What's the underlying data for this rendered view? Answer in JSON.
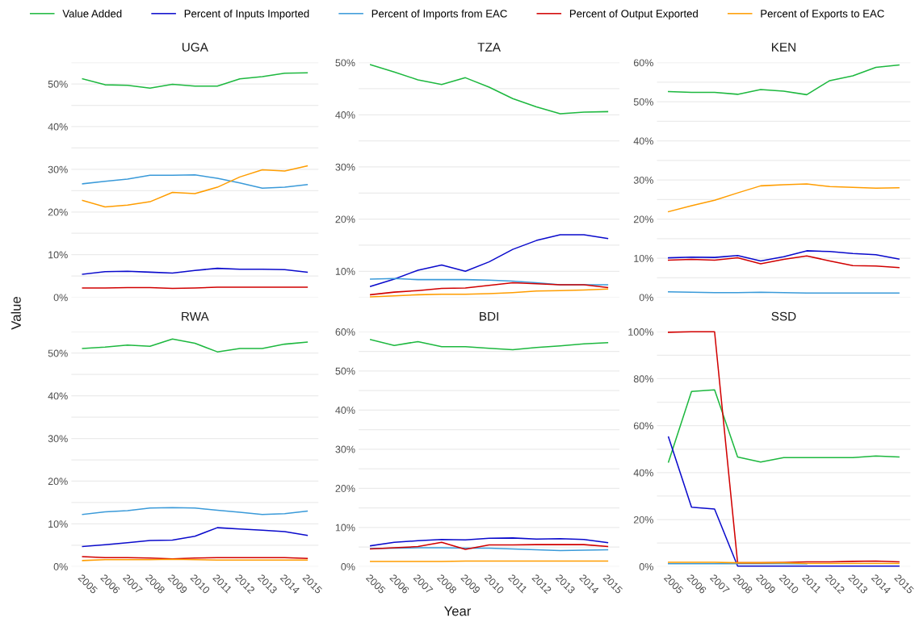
{
  "chart_data": [
    {
      "type": "line",
      "title": "UGA",
      "ylabel": "Value",
      "legend": "top",
      "grid": "y",
      "tick_labels": "y",
      "x": [
        2005,
        2006,
        2007,
        2008,
        2009,
        2010,
        2011,
        2012,
        2013,
        2014,
        2015
      ],
      "xlim": [
        2004.5,
        2015.5
      ],
      "ylim": [
        0,
        55
      ],
      "yticks": [
        {
          "value": 0,
          "label": "0%"
        },
        {
          "value": 5,
          "label": null
        },
        {
          "value": 10,
          "label": "10%"
        },
        {
          "value": 15,
          "label": null
        },
        {
          "value": 20,
          "label": "20%"
        },
        {
          "value": 25,
          "label": null
        },
        {
          "value": 30,
          "label": "30%"
        },
        {
          "value": 35,
          "label": null
        },
        {
          "value": 40,
          "label": "40%"
        },
        {
          "value": 45,
          "label": null
        },
        {
          "value": 50,
          "label": "50%"
        },
        {
          "value": 55,
          "label": null
        }
      ],
      "series": [
        {
          "name": "Value Added",
          "color": "#1db83f",
          "values": [
            51.2,
            49.8,
            49.7,
            49.0,
            49.9,
            49.5,
            49.5,
            51.2,
            51.7,
            52.5,
            52.6
          ]
        },
        {
          "name": "Percent of Inputs Imported",
          "color": "#0a0acc",
          "values": [
            5.4,
            6.0,
            6.1,
            5.9,
            5.7,
            6.3,
            6.8,
            6.6,
            6.6,
            6.5,
            5.9
          ]
        },
        {
          "name": "Percent of Imports from EAC",
          "color": "#3a9ad9",
          "values": [
            26.6,
            27.2,
            27.7,
            28.6,
            28.6,
            28.7,
            27.9,
            26.8,
            25.6,
            25.8,
            26.4
          ]
        },
        {
          "name": "Percent of Output Exported",
          "color": "#d10000",
          "values": [
            2.2,
            2.2,
            2.3,
            2.3,
            2.1,
            2.2,
            2.4,
            2.4,
            2.4,
            2.4,
            2.4
          ]
        },
        {
          "name": "Percent of Exports to EAC",
          "color": "#ff9d00",
          "values": [
            22.7,
            21.2,
            21.6,
            22.4,
            24.6,
            24.3,
            25.8,
            28.2,
            29.9,
            29.6,
            30.8
          ]
        }
      ]
    },
    {
      "type": "line",
      "title": "TZA",
      "grid": "y",
      "tick_labels": "y",
      "x": [
        2005,
        2006,
        2007,
        2008,
        2009,
        2010,
        2011,
        2012,
        2013,
        2014,
        2015
      ],
      "xlim": [
        2004.5,
        2015.5
      ],
      "ylim": [
        5,
        50
      ],
      "yticks": [
        {
          "value": 5,
          "label": null
        },
        {
          "value": 10,
          "label": "10%"
        },
        {
          "value": 15,
          "label": null
        },
        {
          "value": 20,
          "label": "20%"
        },
        {
          "value": 25,
          "label": null
        },
        {
          "value": 30,
          "label": "30%"
        },
        {
          "value": 35,
          "label": null
        },
        {
          "value": 40,
          "label": "40%"
        },
        {
          "value": 45,
          "label": null
        },
        {
          "value": 50,
          "label": "50%"
        }
      ],
      "series": [
        {
          "color": "#1db83f",
          "values": [
            49.6,
            48.2,
            46.7,
            45.8,
            47.1,
            45.3,
            43.1,
            41.5,
            40.2,
            40.5,
            40.6
          ]
        },
        {
          "color": "#0a0acc",
          "values": [
            7.1,
            8.5,
            10.2,
            11.2,
            10.0,
            11.8,
            14.2,
            15.9,
            17.0,
            17.0,
            16.3
          ]
        },
        {
          "color": "#3a9ad9",
          "values": [
            8.5,
            8.6,
            8.4,
            8.4,
            8.4,
            8.3,
            8.1,
            7.8,
            7.4,
            7.4,
            7.4
          ]
        },
        {
          "color": "#d10000",
          "values": [
            5.5,
            6.0,
            6.3,
            6.7,
            6.8,
            7.3,
            7.8,
            7.6,
            7.4,
            7.4,
            6.9
          ]
        },
        {
          "color": "#ff9d00",
          "values": [
            5.1,
            5.3,
            5.5,
            5.6,
            5.6,
            5.7,
            5.9,
            6.2,
            6.3,
            6.4,
            6.6
          ]
        }
      ]
    },
    {
      "type": "line",
      "title": "KEN",
      "grid": "y",
      "tick_labels": "y",
      "x": [
        2005,
        2006,
        2007,
        2008,
        2009,
        2010,
        2011,
        2012,
        2013,
        2014,
        2015
      ],
      "xlim": [
        2004.5,
        2015.5
      ],
      "ylim": [
        0,
        60
      ],
      "yticks": [
        {
          "value": 0,
          "label": "0%"
        },
        {
          "value": 5,
          "label": null
        },
        {
          "value": 10,
          "label": "10%"
        },
        {
          "value": 15,
          "label": null
        },
        {
          "value": 20,
          "label": "20%"
        },
        {
          "value": 25,
          "label": null
        },
        {
          "value": 30,
          "label": "30%"
        },
        {
          "value": 35,
          "label": null
        },
        {
          "value": 40,
          "label": "40%"
        },
        {
          "value": 45,
          "label": null
        },
        {
          "value": 50,
          "label": "50%"
        },
        {
          "value": 55,
          "label": null
        },
        {
          "value": 60,
          "label": "60%"
        }
      ],
      "series": [
        {
          "color": "#1db83f",
          "values": [
            52.6,
            52.4,
            52.4,
            51.9,
            53.1,
            52.7,
            51.8,
            55.4,
            56.6,
            58.8,
            59.4
          ]
        },
        {
          "color": "#0a0acc",
          "values": [
            10.1,
            10.3,
            10.2,
            10.7,
            9.3,
            10.4,
            11.9,
            11.7,
            11.2,
            10.9,
            9.8
          ]
        },
        {
          "color": "#3a9ad9",
          "values": [
            1.4,
            1.3,
            1.2,
            1.2,
            1.3,
            1.2,
            1.1,
            1.1,
            1.1,
            1.1,
            1.1
          ]
        },
        {
          "color": "#d10000",
          "values": [
            9.5,
            9.7,
            9.5,
            10.1,
            8.6,
            9.7,
            10.6,
            9.3,
            8.1,
            8.0,
            7.6
          ]
        },
        {
          "color": "#ff9d00",
          "values": [
            21.9,
            23.4,
            24.8,
            26.7,
            28.5,
            28.8,
            29.0,
            28.3,
            28.1,
            27.9,
            28.0
          ]
        }
      ]
    },
    {
      "type": "line",
      "title": "RWA",
      "grid": "y",
      "x": [
        2005,
        2006,
        2007,
        2008,
        2009,
        2010,
        2011,
        2012,
        2013,
        2014,
        2015
      ],
      "xlim": [
        2004.5,
        2015.5
      ],
      "ylim": [
        0,
        55
      ],
      "xticks": [
        2005,
        2006,
        2007,
        2008,
        2009,
        2010,
        2011,
        2012,
        2013,
        2014,
        2015
      ],
      "yticks": [
        {
          "value": 0,
          "label": "0%"
        },
        {
          "value": 5,
          "label": null
        },
        {
          "value": 10,
          "label": "10%"
        },
        {
          "value": 15,
          "label": null
        },
        {
          "value": 20,
          "label": "20%"
        },
        {
          "value": 25,
          "label": null
        },
        {
          "value": 30,
          "label": "30%"
        },
        {
          "value": 35,
          "label": null
        },
        {
          "value": 40,
          "label": "40%"
        },
        {
          "value": 45,
          "label": null
        },
        {
          "value": 50,
          "label": "50%"
        },
        {
          "value": 55,
          "label": null
        }
      ],
      "series": [
        {
          "color": "#1db83f",
          "values": [
            51.1,
            51.4,
            51.9,
            51.6,
            53.3,
            52.3,
            50.3,
            51.1,
            51.1,
            52.1,
            52.6
          ]
        },
        {
          "color": "#0a0acc",
          "values": [
            4.7,
            5.1,
            5.6,
            6.1,
            6.2,
            7.1,
            9.1,
            8.8,
            8.5,
            8.2,
            7.3
          ]
        },
        {
          "color": "#3a9ad9",
          "values": [
            12.2,
            12.8,
            13.1,
            13.7,
            13.8,
            13.7,
            13.2,
            12.7,
            12.2,
            12.4,
            13.0
          ]
        },
        {
          "color": "#d10000",
          "values": [
            2.3,
            2.1,
            2.1,
            2.0,
            1.8,
            2.0,
            2.1,
            2.1,
            2.1,
            2.1,
            1.9
          ]
        },
        {
          "color": "#ff9d00",
          "values": [
            1.4,
            1.6,
            1.6,
            1.6,
            1.7,
            1.6,
            1.5,
            1.5,
            1.5,
            1.5,
            1.5
          ]
        }
      ]
    },
    {
      "type": "line",
      "title": "BDI",
      "xlabel": "Year",
      "grid": "y",
      "x": [
        2005,
        2006,
        2007,
        2008,
        2009,
        2010,
        2011,
        2012,
        2013,
        2014,
        2015
      ],
      "xlim": [
        2004.5,
        2015.5
      ],
      "ylim": [
        0,
        60
      ],
      "xticks": [
        2005,
        2006,
        2007,
        2008,
        2009,
        2010,
        2011,
        2012,
        2013,
        2014,
        2015
      ],
      "yticks": [
        {
          "value": 0,
          "label": "0%"
        },
        {
          "value": 5,
          "label": null
        },
        {
          "value": 10,
          "label": "10%"
        },
        {
          "value": 15,
          "label": null
        },
        {
          "value": 20,
          "label": "20%"
        },
        {
          "value": 25,
          "label": null
        },
        {
          "value": 30,
          "label": "30%"
        },
        {
          "value": 35,
          "label": null
        },
        {
          "value": 40,
          "label": "40%"
        },
        {
          "value": 45,
          "label": null
        },
        {
          "value": 50,
          "label": "50%"
        },
        {
          "value": 55,
          "label": null
        },
        {
          "value": 60,
          "label": "60%"
        }
      ],
      "series": [
        {
          "color": "#1db83f",
          "values": [
            58.0,
            56.5,
            57.5,
            56.2,
            56.2,
            55.8,
            55.4,
            56.0,
            56.4,
            56.9,
            57.2
          ]
        },
        {
          "color": "#0a0acc",
          "values": [
            5.3,
            6.2,
            6.6,
            6.9,
            6.8,
            7.2,
            7.3,
            7.0,
            7.1,
            6.9,
            6.1
          ]
        },
        {
          "color": "#3a9ad9",
          "values": [
            4.6,
            4.7,
            4.8,
            4.8,
            4.7,
            4.7,
            4.5,
            4.3,
            4.1,
            4.2,
            4.3
          ]
        },
        {
          "color": "#d10000",
          "values": [
            4.5,
            4.8,
            5.1,
            6.2,
            4.4,
            5.5,
            5.5,
            5.6,
            5.6,
            5.6,
            5.1
          ]
        },
        {
          "color": "#ff9d00",
          "values": [
            1.3,
            1.3,
            1.3,
            1.3,
            1.4,
            1.4,
            1.4,
            1.4,
            1.4,
            1.4,
            1.4
          ]
        }
      ]
    },
    {
      "type": "line",
      "title": "SSD",
      "grid": "y",
      "x": [
        2005,
        2006,
        2007,
        2008,
        2009,
        2010,
        2011,
        2012,
        2013,
        2014,
        2015
      ],
      "xlim": [
        2004.5,
        2015.5
      ],
      "ylim": [
        0,
        100
      ],
      "xticks": [
        2005,
        2006,
        2007,
        2008,
        2009,
        2010,
        2011,
        2012,
        2013,
        2014,
        2015
      ],
      "yticks": [
        {
          "value": 0,
          "label": "0%"
        },
        {
          "value": 10,
          "label": null
        },
        {
          "value": 20,
          "label": "20%"
        },
        {
          "value": 30,
          "label": null
        },
        {
          "value": 40,
          "label": "40%"
        },
        {
          "value": 50,
          "label": null
        },
        {
          "value": 60,
          "label": "60%"
        },
        {
          "value": 70,
          "label": null
        },
        {
          "value": 80,
          "label": "80%"
        },
        {
          "value": 90,
          "label": null
        },
        {
          "value": 100,
          "label": "100%"
        }
      ],
      "series": [
        {
          "color": "#1db83f",
          "values": [
            44.5,
            74.6,
            75.3,
            46.7,
            44.5,
            46.4,
            46.4,
            46.4,
            46.4,
            47.1,
            46.7
          ]
        },
        {
          "color": "#0a0acc",
          "values": [
            55.2,
            25.3,
            24.5,
            0.2,
            0.2,
            0.2,
            0.2,
            0.2,
            0.2,
            0.2,
            0.2
          ]
        },
        {
          "color": "#3a9ad9",
          "values": [
            1.2,
            1.2,
            1.2,
            1.2,
            1.2,
            1.2,
            1.1,
            null,
            null,
            null,
            null
          ]
        },
        {
          "color": "#d10000",
          "values": [
            99.8,
            100,
            100,
            1.6,
            1.6,
            1.7,
            2.0,
            2.0,
            2.2,
            2.3,
            2.0
          ]
        },
        {
          "color": "#ff9d00",
          "values": [
            1.8,
            1.8,
            1.8,
            1.6,
            1.6,
            1.6,
            1.3,
            1.3,
            1.3,
            1.3,
            1.3
          ]
        }
      ]
    }
  ]
}
